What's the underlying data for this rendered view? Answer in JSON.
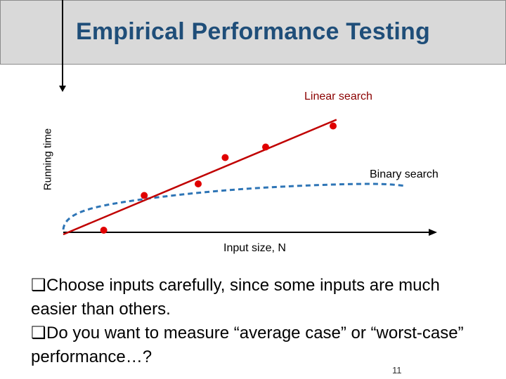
{
  "slide": {
    "title": "Empirical Performance Testing",
    "page_number": "11"
  },
  "diagram": {
    "y_axis_label": "Running time",
    "x_axis_label": "Input size, N",
    "linear_label": "Linear search",
    "binary_label": "Binary search",
    "colors": {
      "linear": "#c00000",
      "binary": "#2e75b6",
      "axis": "#000000"
    },
    "points": [
      {
        "n": 1.2,
        "t": 0.2
      },
      {
        "n": 2.4,
        "t": 3.5
      },
      {
        "n": 4.0,
        "t": 4.6
      },
      {
        "n": 4.8,
        "t": 7.1
      },
      {
        "n": 6.0,
        "t": 8.1
      },
      {
        "n": 8.0,
        "t": 10.1
      }
    ]
  },
  "bullets": [
    {
      "marker": "❑",
      "text": "Choose inputs carefully, since some inputs are much easier than others."
    },
    {
      "marker": "❑",
      "text": "Do you want to measure “average case” or “worst-case” performance…?"
    }
  ]
}
